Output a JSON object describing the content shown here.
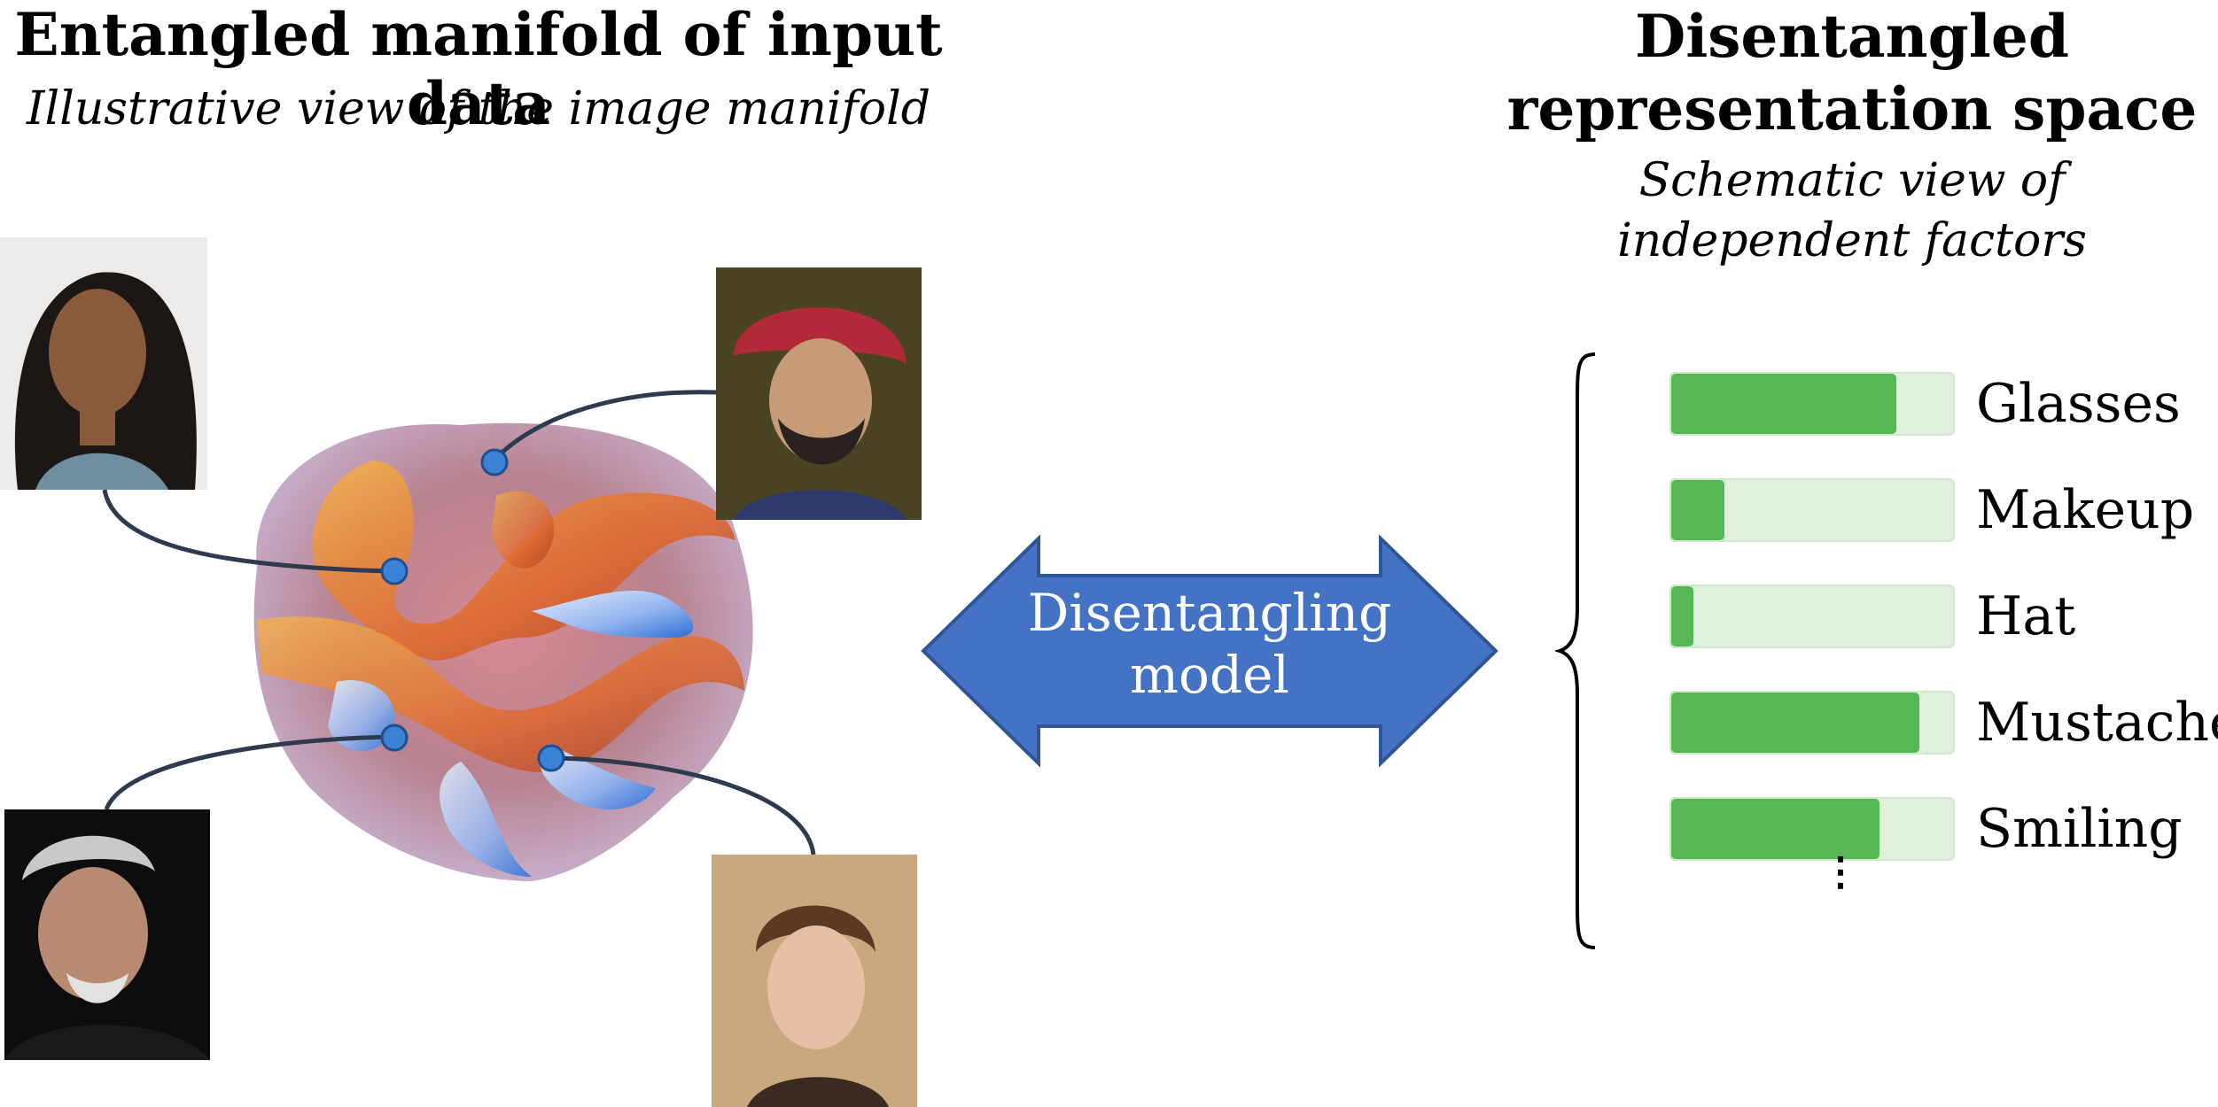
{
  "left_panel": {
    "title": "Entangled manifold of input data",
    "subtitle": "Illustrative view of the image manifold"
  },
  "right_panel": {
    "title_line1": "Disentangled",
    "title_line2": "representation space",
    "subtitle_line1": "Schematic view of",
    "subtitle_line2": "independent factors"
  },
  "arrow": {
    "label_line1": "Disentangling",
    "label_line2": "model",
    "color": "#4472c4"
  },
  "factors": [
    {
      "label": "Glasses",
      "level": 0.8
    },
    {
      "label": "Makeup",
      "level": 0.19
    },
    {
      "label": "Hat",
      "level": 0.08
    },
    {
      "label": "Mustache",
      "level": 0.88
    },
    {
      "label": "Smiling",
      "level": 0.74
    }
  ],
  "ellipsis": "⋮",
  "colors": {
    "bar_fill": "#56b854",
    "bar_track": "#dff1dd",
    "connector": "#2e3b4e",
    "point": "#3b82d6"
  }
}
